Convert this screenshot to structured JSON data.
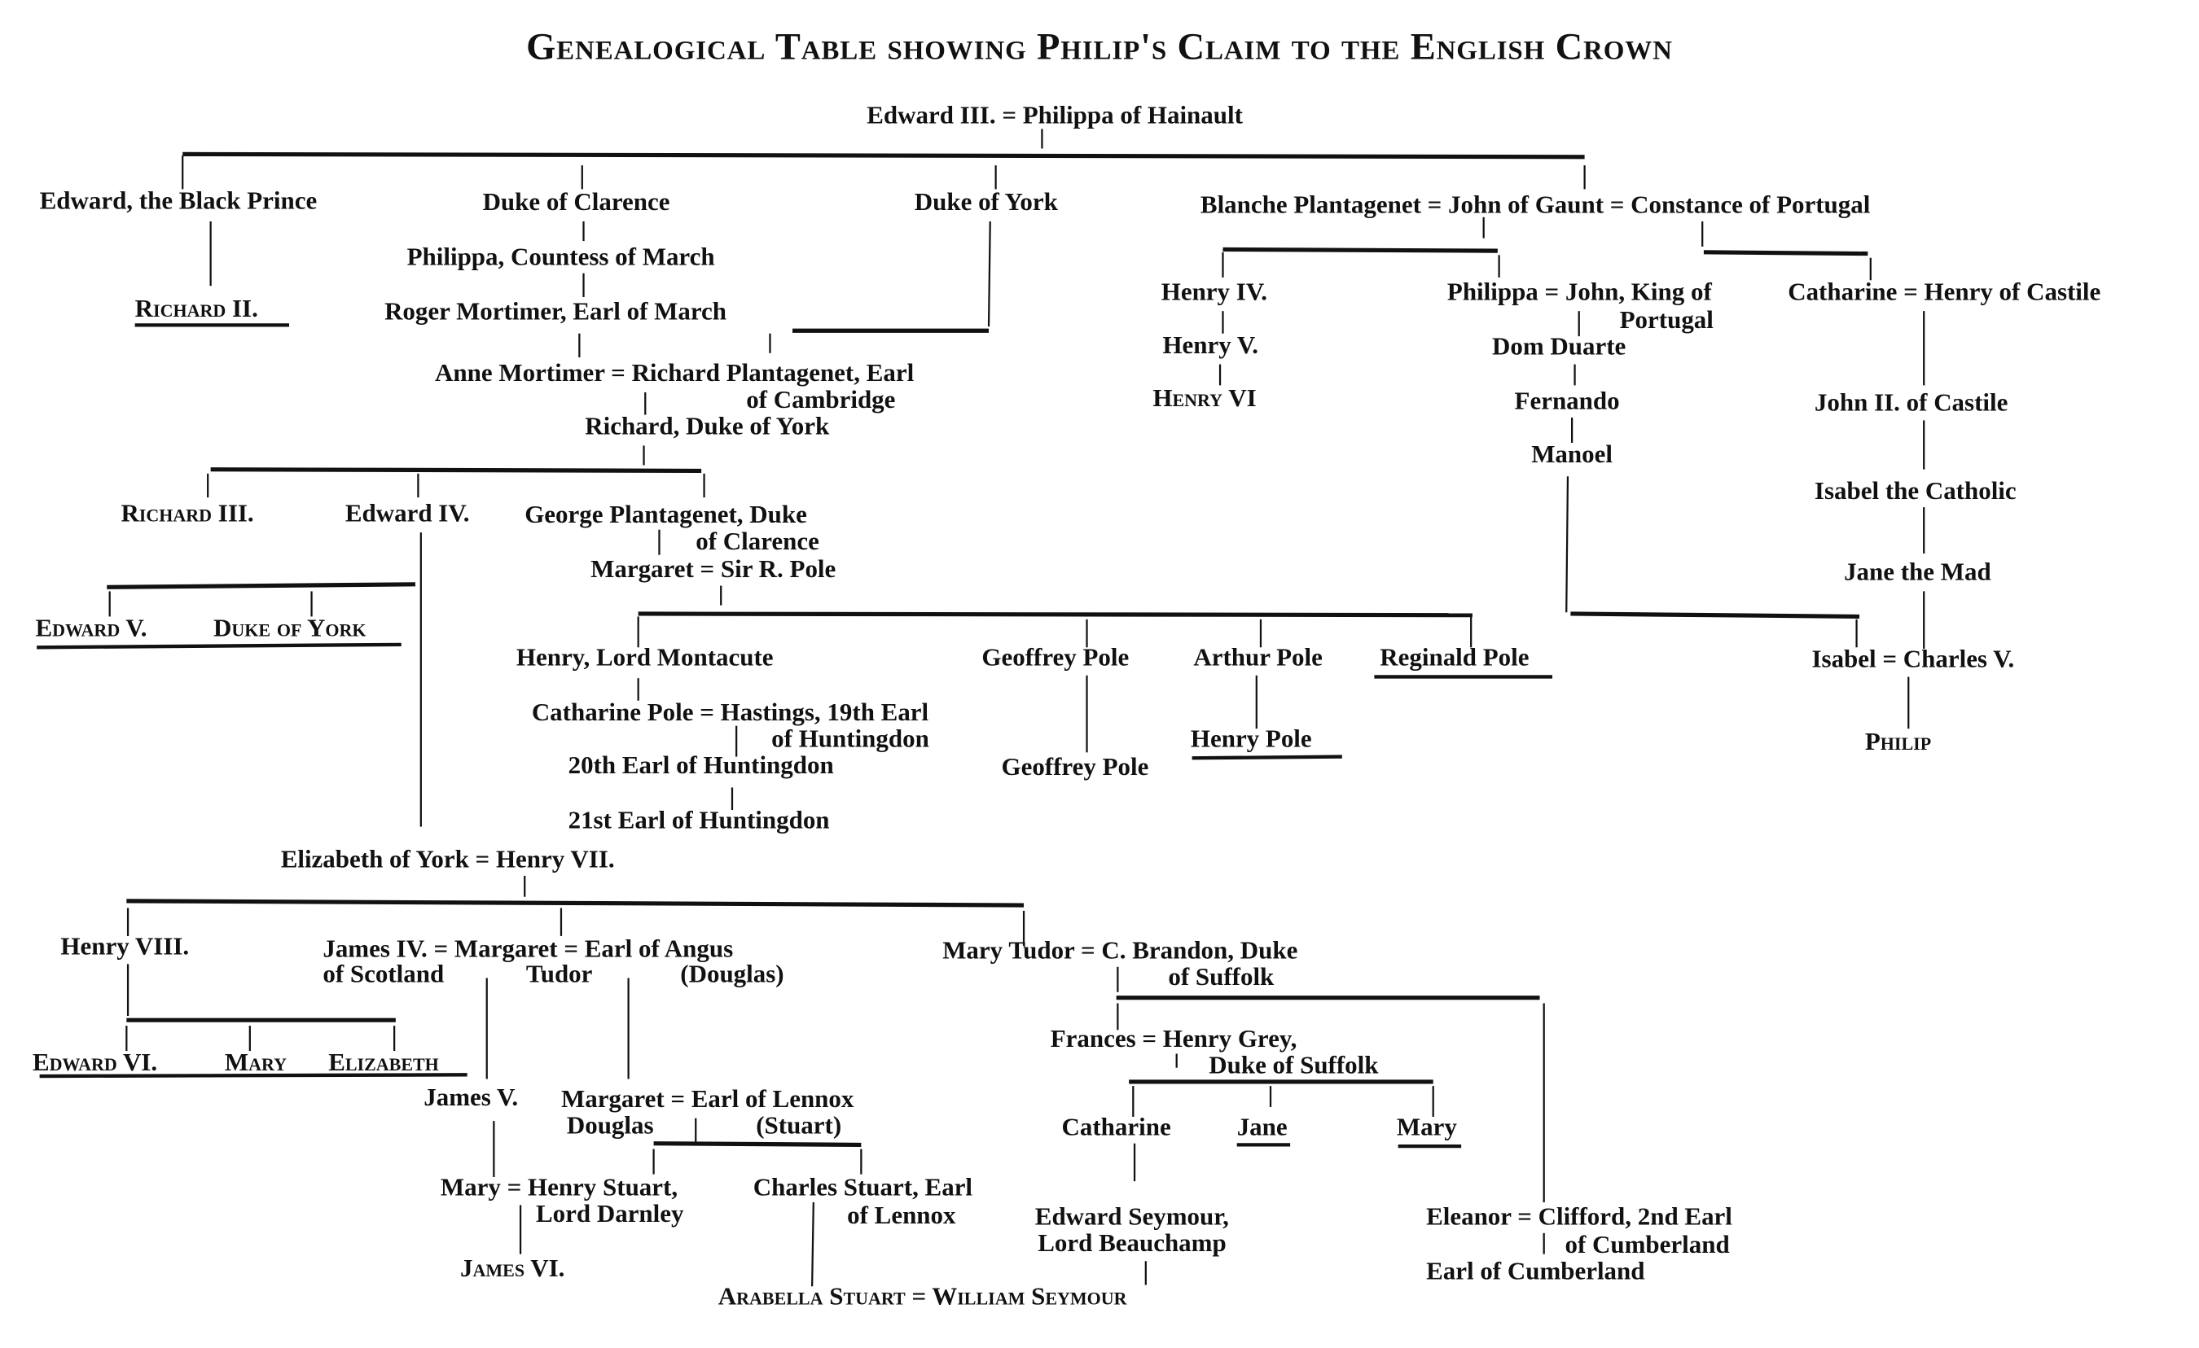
{
  "title": "Genealogical Table showing Philip's Claim to the English Crown",
  "p": {
    "edward3": "Edward III. = Philippa of Hainault",
    "blackprince": "Edward, the Black Prince",
    "clarence": "Duke of Clarence",
    "york": "Duke of York",
    "gaunt": "Blanche Plantagenet = John of Gaunt = Constance of Portugal",
    "richard2": "Richard II.",
    "philippa_march": "Philippa, Countess of March",
    "roger": "Roger Mortimer, Earl of March",
    "anne1": "Anne Mortimer = Richard Plantagenet, Earl",
    "anne2": "of Cambridge",
    "richard_york": "Richard, Duke of York",
    "richard3": "Richard III.",
    "edward4": "Edward IV.",
    "george1": "George Plantagenet, Duke",
    "george2": "of Clarence",
    "margaret_pole": "Margaret = Sir R. Pole",
    "edward5": "Edward V.",
    "duke_york2": "Duke of York",
    "montacute": "Henry, Lord Montacute",
    "geoffrey": "Geoffrey Pole",
    "arthur": "Arthur Pole",
    "reginald": "Reginald Pole",
    "catharine_pole1": "Catharine Pole = Hastings, 19th Earl",
    "catharine_pole2": "of Huntingdon",
    "earl20": "20th Earl of Huntingdon",
    "earl21": "21st Earl of Huntingdon",
    "geoffrey2": "Geoffrey Pole",
    "henry_pole": "Henry Pole",
    "elizabeth_york": "Elizabeth of York = Henry VII.",
    "henry8": "Henry VIII.",
    "james4a": "James IV. = Margaret = Earl of Angus",
    "james4b": "of Scotland",
    "james4c": "Tudor",
    "james4d": "(Douglas)",
    "marytudor1": "Mary Tudor = C. Brandon, Duke",
    "marytudor2": "of Suffolk",
    "edward6": "Edward VI.",
    "mary1": "Mary",
    "elizabeth1": "Elizabeth",
    "james5": "James V.",
    "margaret_d1": "Margaret = Earl of Lennox",
    "margaret_d2": "Douglas",
    "margaret_d3": "(Stuart)",
    "maryq1": "Mary = Henry Stuart,",
    "maryq2": "Lord Darnley",
    "james6": "James VI.",
    "charles1": "Charles Stuart, Earl",
    "charles2": "of Lennox",
    "arabella": "Arabella Stuart = William Seymour",
    "frances1": "Frances = Henry Grey,",
    "frances2": "Duke of Suffolk",
    "catharine_g": "Catharine",
    "jane": "Jane",
    "mary_g": "Mary",
    "seymour1": "Edward Seymour,",
    "seymour2": "Lord Beauchamp",
    "eleanor1": "Eleanor = Clifford, 2nd Earl",
    "eleanor2": "of Cumberland",
    "eleanor3": "Earl of Cumberland",
    "henry4": "Henry IV.",
    "henry5": "Henry V.",
    "henry6": "Henry VI",
    "philippa_p1": "Philippa = John, King of",
    "philippa_p2": "Portugal",
    "duarte": "Dom Duarte",
    "fernando": "Fernando",
    "manoel": "Manoel",
    "catharine_c": "Catharine = Henry of Castile",
    "john2": "John II. of Castile",
    "isabel_cath": "Isabel the Catholic",
    "jane_mad": "Jane the Mad",
    "isabel_charles": "Isabel = Charles V.",
    "philip": "Philip"
  }
}
